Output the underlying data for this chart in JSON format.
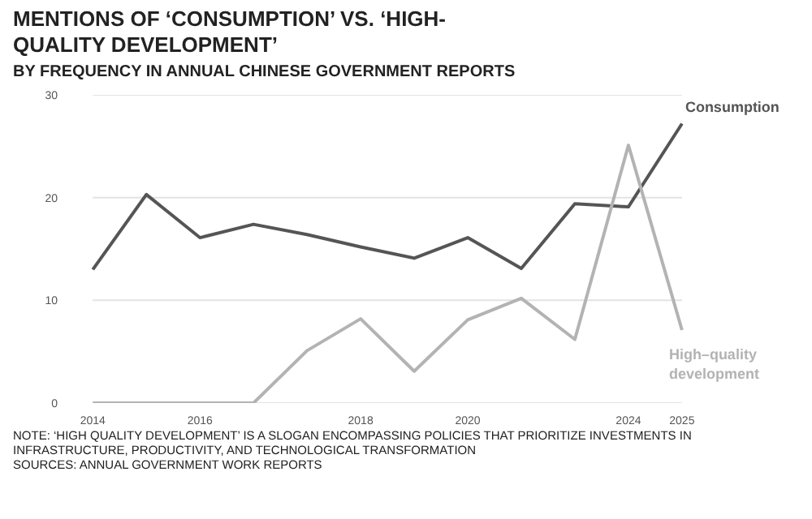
{
  "chart_data": {
    "type": "line",
    "title": "MENTIONS OF ‘CONSUMPTION’ VS. ‘HIGH-QUALITY DEVELOPMENT’",
    "subtitle": "BY FREQUENCY IN ANNUAL CHINESE GOVERNMENT REPORTS",
    "categories": [
      "2014",
      null,
      "2016",
      null,
      null,
      "2018",
      null,
      "2020",
      null,
      null,
      "2024",
      "2025"
    ],
    "series": [
      {
        "name": "Consumption",
        "color": "#555555",
        "values": [
          13.0,
          20.3,
          16.1,
          17.4,
          16.4,
          15.2,
          14.1,
          16.1,
          13.1,
          19.4,
          19.1,
          27.2
        ]
      },
      {
        "name": "High–quality development",
        "color": "#b3b3b3",
        "values": [
          0,
          0,
          0,
          0,
          5.1,
          8.2,
          3.1,
          8.1,
          10.2,
          6.2,
          25.1,
          7.1
        ]
      }
    ],
    "ylim": [
      0,
      30
    ],
    "yticks": [
      0,
      10,
      20,
      30
    ],
    "grid": "y",
    "legend": false,
    "marker": "none",
    "line_style": "solid",
    "annotations": [
      "NOTE: ‘HIGH QUALITY DEVELOPMENT’ IS A SLOGAN ENCOMPASSING POLICIES THAT PRIORITIZE INVESTMENTS IN INFRASTRUCTURE, PRODUCTIVITY, AND TECHNOLOGICAL TRANSFORMATION",
      "SOURCES: ANNUAL GOVERNMENT WORK REPORTS"
    ]
  }
}
